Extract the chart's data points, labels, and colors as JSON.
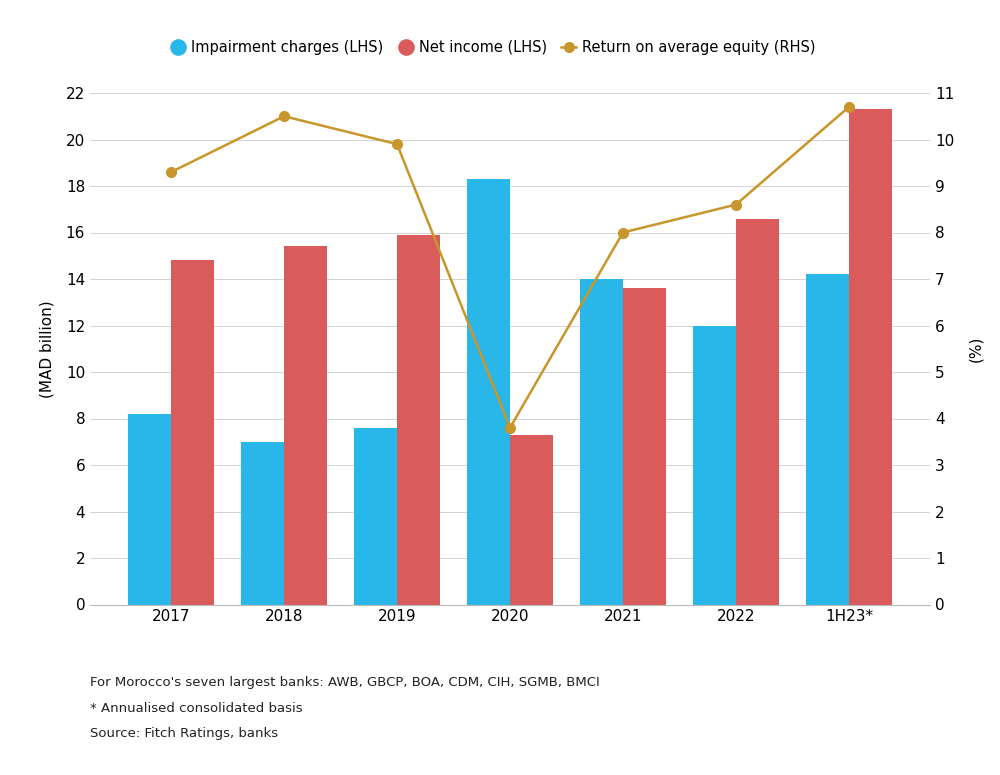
{
  "categories": [
    "2017",
    "2018",
    "2019",
    "2020",
    "2021",
    "2022",
    "1H23*"
  ],
  "impairment_charges": [
    8.2,
    7.0,
    7.6,
    18.3,
    14.0,
    12.0,
    14.2
  ],
  "net_income": [
    14.8,
    15.4,
    15.9,
    7.3,
    13.6,
    16.6,
    21.3
  ],
  "roae": [
    9.3,
    10.5,
    9.9,
    3.8,
    8.0,
    8.6,
    10.7
  ],
  "bar_width": 0.38,
  "impairment_color": "#29B6E8",
  "net_income_color": "#D95B5B",
  "roae_color": "#C8962A",
  "ylim_left": [
    0,
    22
  ],
  "ylim_right": [
    0,
    11
  ],
  "yticks_left": [
    0,
    2,
    4,
    6,
    8,
    10,
    12,
    14,
    16,
    18,
    20,
    22
  ],
  "yticks_right": [
    0,
    1,
    2,
    3,
    4,
    5,
    6,
    7,
    8,
    9,
    10,
    11
  ],
  "ylabel_left": "(MAD billion)",
  "ylabel_right": "(%)",
  "legend_labels": [
    "Impairment charges (LHS)",
    "Net income (LHS)",
    "Return on average equity (RHS)"
  ],
  "footnote1": "For Morocco's seven largest banks: AWB, GBCP, BOA, CDM, CIH, SGMB, BMCI",
  "footnote2": "* Annualised consolidated basis",
  "footnote3": "Source: Fitch Ratings, banks",
  "background_color": "#FFFFFF",
  "grid_color": "#CCCCCC"
}
